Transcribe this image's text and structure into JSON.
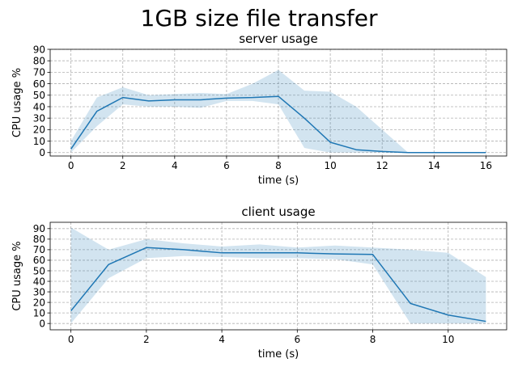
{
  "figure_title": "1GB size file transfer",
  "chart_data": [
    {
      "type": "line",
      "title": "server usage",
      "xlabel": "time (s)",
      "ylabel": "CPU usage %",
      "xlim": [
        -0.8,
        16.8
      ],
      "ylim": [
        -3,
        90
      ],
      "xticks": [
        0,
        2,
        4,
        6,
        8,
        10,
        12,
        14,
        16
      ],
      "yticks": [
        0,
        10,
        20,
        30,
        40,
        50,
        60,
        70,
        80,
        90
      ],
      "grid": true,
      "line_color": "#1f77b4",
      "band_color": "#1f77b4",
      "x": [
        0,
        1,
        2,
        3,
        4,
        5,
        6,
        7,
        8,
        9,
        10,
        11,
        12,
        13,
        14,
        15,
        16
      ],
      "mean": [
        3,
        36,
        48,
        45,
        46,
        46,
        47.5,
        48,
        49,
        30,
        9,
        2.5,
        1,
        0,
        0,
        0,
        0
      ],
      "upper": [
        10,
        48,
        57,
        50,
        51,
        52,
        51,
        60,
        72,
        54,
        53,
        40,
        20,
        0,
        0,
        0,
        0
      ],
      "lower": [
        0,
        23,
        42,
        40,
        40,
        39,
        45,
        45,
        42,
        4,
        0,
        0,
        0,
        0,
        0,
        0,
        0
      ]
    },
    {
      "type": "line",
      "title": "client usage",
      "xlabel": "time (s)",
      "ylabel": "CPU usage %",
      "xlim": [
        -0.55,
        11.55
      ],
      "ylim": [
        -6,
        96
      ],
      "xticks": [
        0,
        2,
        4,
        6,
        8,
        10
      ],
      "yticks": [
        0,
        10,
        20,
        30,
        40,
        50,
        60,
        70,
        80,
        90
      ],
      "grid": true,
      "line_color": "#1f77b4",
      "band_color": "#1f77b4",
      "x": [
        0,
        1,
        2,
        3,
        4,
        5,
        6,
        7,
        8,
        9,
        10,
        11
      ],
      "mean": [
        12,
        56,
        72,
        70,
        67,
        67,
        67,
        66,
        65.5,
        19,
        8,
        2
      ],
      "upper": [
        91,
        70,
        80,
        76,
        73,
        75,
        72,
        74,
        72,
        70,
        67,
        44
      ],
      "lower": [
        0,
        43,
        62,
        64,
        63,
        62,
        62,
        61,
        56,
        0,
        0,
        0
      ]
    }
  ]
}
